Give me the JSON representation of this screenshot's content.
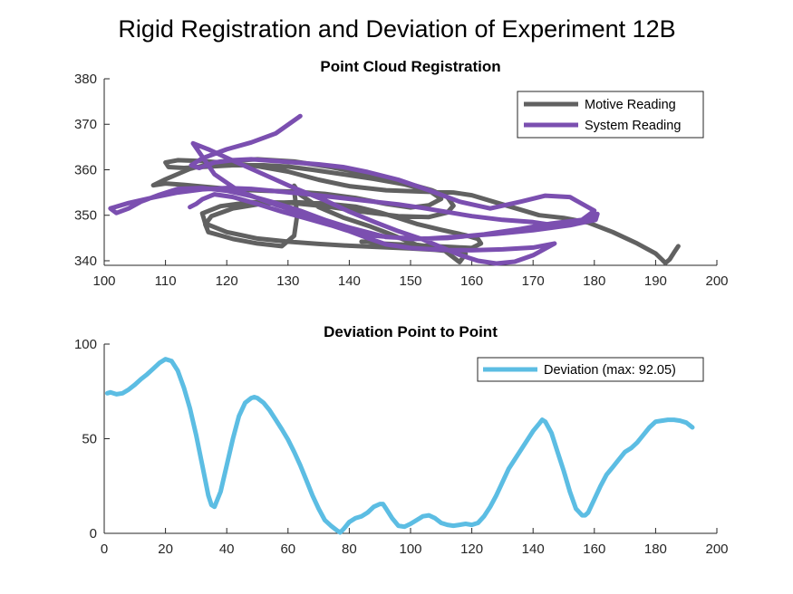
{
  "figure": {
    "title": "Rigid Registration and Deviation of Experiment 12B"
  },
  "chart_data": [
    {
      "type": "line",
      "title": "Point Cloud Registration",
      "xlabel": "",
      "ylabel": "",
      "xlim": [
        100,
        200
      ],
      "ylim": [
        339,
        380
      ],
      "xticks": [
        100,
        110,
        120,
        130,
        140,
        150,
        160,
        170,
        180,
        190,
        200
      ],
      "yticks": [
        340,
        350,
        360,
        370,
        380
      ],
      "grid": false,
      "legend_position": "top-right",
      "series": [
        {
          "name": "Motive Reading",
          "color": "#616161",
          "x": [
            193.7,
            193.0,
            192.3,
            191.6,
            191.1,
            190.0,
            187.0,
            183.0,
            179.0,
            175.0,
            171.0,
            168.0,
            164.0,
            160.0,
            157.0,
            152.0,
            146.0,
            140.0,
            135.0,
            130.0,
            125.0,
            120.0,
            116.0,
            112.0,
            110.0,
            110.5,
            113.0,
            117.0,
            121.0,
            126.0,
            130.0,
            134.0,
            139.0,
            144.0,
            149.0,
            153.0,
            155.0,
            153.0,
            150.0,
            146.0,
            141.0,
            136.0,
            131.0,
            126.0,
            121.0,
            117.0,
            113.0,
            110.0,
            108.0,
            110.0,
            114.0,
            119.0,
            125.0,
            131.0,
            137.0,
            143.0,
            149.0,
            153.5,
            156.0,
            157.0,
            156.0,
            153.0,
            148.0,
            142.0,
            136.0,
            130.0,
            124.0,
            119.0,
            116.0,
            116.5,
            120.0,
            125.0,
            130.0,
            135.0,
            140.0,
            145.0,
            150.0,
            154.0,
            157.0,
            159.0,
            158.0,
            155.0,
            151.0,
            147.0,
            143.5,
            139.0,
            135.0,
            132.0,
            131.0,
            131.0,
            131.5,
            131.0,
            129.0,
            125.0,
            121.0,
            117.0,
            116.5,
            117.5,
            121.0,
            126.0,
            131.0,
            136.0,
            141.0,
            145.0,
            148.0,
            151.0,
            155.0,
            159.0,
            161.0,
            161.5,
            160.0,
            157.0,
            154.0,
            151.0,
            148.0,
            145.0,
            143.0,
            142.0
          ],
          "y": [
            343.2,
            341.8,
            340.3,
            339.5,
            340.2,
            341.6,
            343.8,
            346.3,
            348.4,
            349.4,
            350.0,
            351.2,
            352.8,
            354.4,
            355.0,
            355.2,
            355.5,
            356.4,
            357.8,
            359.6,
            360.8,
            361.5,
            361.9,
            362.1,
            361.6,
            360.6,
            360.4,
            360.7,
            361.0,
            361.0,
            360.7,
            360.0,
            359.0,
            358.0,
            356.8,
            355.4,
            353.6,
            352.2,
            351.7,
            352.5,
            353.8,
            354.7,
            355.2,
            355.4,
            355.7,
            356.2,
            356.7,
            357.0,
            356.6,
            357.9,
            360.2,
            361.8,
            362.3,
            361.8,
            360.6,
            359.0,
            357.2,
            355.5,
            354.0,
            352.1,
            350.6,
            349.6,
            349.8,
            350.8,
            352.0,
            352.8,
            352.9,
            352.0,
            350.4,
            348.2,
            346.3,
            344.9,
            344.2,
            343.7,
            343.3,
            343.0,
            342.7,
            342.4,
            342.0,
            341.5,
            339.7,
            342.8,
            343.5,
            345.7,
            347.5,
            349.5,
            351.8,
            354.5,
            356.5,
            355.5,
            350.0,
            345.5,
            343.2,
            343.8,
            344.8,
            346.3,
            348.0,
            349.8,
            351.5,
            352.6,
            352.9,
            352.6,
            351.9,
            350.6,
            349.4,
            348.1,
            346.8,
            345.6,
            344.8,
            343.8,
            342.8,
            343.0,
            343.2,
            343.4,
            343.6,
            343.8,
            344.2,
            344.2
          ]
        },
        {
          "name": "System Reading",
          "color": "#7b4fb0",
          "x": [
            132.0,
            128.0,
            124.0,
            120.0,
            116.0,
            114.2,
            115.5,
            118.0,
            121.0,
            124.0,
            127.0,
            131.0,
            135.0,
            139.0,
            143.0,
            148.0,
            153.0,
            158.0,
            163.0,
            168.0,
            172.0,
            176.0,
            180.0,
            178.0,
            173.0,
            168.0,
            162.0,
            156.0,
            150.0,
            144.0,
            140.0,
            136.0,
            132.0,
            128.0,
            124.0,
            120.0,
            116.0,
            112.0,
            109.0,
            106.0,
            104.0,
            102.0,
            101.0,
            104.0,
            108.0,
            112.0,
            116.0,
            120.0,
            124.0,
            128.0,
            132.0,
            136.0,
            140.0,
            144.0,
            148.0,
            152.0,
            156.0,
            160.0,
            165.0,
            170.0,
            172.5,
            174.5,
            177.0,
            179.0,
            180.5,
            180.2,
            176.0,
            170.0,
            164.0,
            158.0,
            152.0,
            146.0,
            140.0,
            134.0,
            128.0,
            122.0,
            118.0,
            114.5,
            117.0,
            121.0,
            126.0,
            131.0,
            136.0,
            140.0,
            144.0,
            148.0,
            152.0,
            155.0,
            158.0,
            161.0,
            164.0,
            167.0,
            170.0,
            173.5,
            170.0,
            165.0,
            160.0,
            155.0,
            150.0,
            146.0,
            143.0,
            140.0,
            137.0,
            133.0,
            129.0,
            125.0,
            121.0,
            118.0,
            116.0,
            115.0,
            114.0
          ],
          "y": [
            371.8,
            368.0,
            366.0,
            364.5,
            362.5,
            361.0,
            360.4,
            361.6,
            362.1,
            362.3,
            362.0,
            361.6,
            361.2,
            360.6,
            359.5,
            357.8,
            355.5,
            353.0,
            351.5,
            353.0,
            354.3,
            354.0,
            351.0,
            349.0,
            348.2,
            347.0,
            345.8,
            345.0,
            344.8,
            345.5,
            347.0,
            349.0,
            351.0,
            352.7,
            354.2,
            355.4,
            356.0,
            355.8,
            354.5,
            353.0,
            351.5,
            350.5,
            351.5,
            352.7,
            353.9,
            355.0,
            355.7,
            356.0,
            355.8,
            355.3,
            354.8,
            354.2,
            353.6,
            353.0,
            352.4,
            351.6,
            350.7,
            349.8,
            349.0,
            348.5,
            348.0,
            347.7,
            348.3,
            349.3,
            350.3,
            349.0,
            347.8,
            346.7,
            345.9,
            345.3,
            344.8,
            345.2,
            347.3,
            349.8,
            352.3,
            355.3,
            359.0,
            365.8,
            364.5,
            362.0,
            359.0,
            356.0,
            353.3,
            350.8,
            348.6,
            346.5,
            344.7,
            343.0,
            341.3,
            340.0,
            339.4,
            339.8,
            341.2,
            343.8,
            342.9,
            342.5,
            342.3,
            342.4,
            342.8,
            343.6,
            345.0,
            346.5,
            347.8,
            349.3,
            350.8,
            352.5,
            354.0,
            354.6,
            353.5,
            352.5,
            351.8
          ]
        }
      ]
    },
    {
      "type": "line",
      "title": "Deviation Point to Point",
      "xlabel": "",
      "ylabel": "",
      "xlim": [
        0,
        200
      ],
      "ylim": [
        0,
        100
      ],
      "xticks": [
        0,
        20,
        40,
        60,
        80,
        100,
        120,
        140,
        160,
        180,
        200
      ],
      "yticks": [
        0,
        50,
        100
      ],
      "grid": false,
      "legend_position": "top-right",
      "series": [
        {
          "name": "Deviation (max: 92.05)",
          "color": "#5cbde3",
          "x": [
            1,
            2,
            4,
            6,
            8,
            10,
            12,
            14,
            16,
            18,
            20,
            22,
            24,
            26,
            28,
            30,
            32,
            34,
            35,
            36,
            38,
            40,
            42,
            44,
            46,
            48,
            49,
            50,
            52,
            54,
            56,
            58,
            60,
            62,
            64,
            66,
            68,
            70,
            72,
            74,
            76,
            77,
            78,
            80,
            82,
            84,
            86,
            88,
            90,
            91,
            92,
            94,
            96,
            98,
            100,
            102,
            104,
            106,
            108,
            110,
            112,
            114,
            116,
            118,
            120,
            122,
            124,
            126,
            128,
            130,
            132,
            134,
            136,
            138,
            140,
            142,
            143,
            144,
            146,
            148,
            150,
            152,
            154,
            156,
            157,
            158,
            160,
            162,
            164,
            166,
            168,
            170,
            172,
            174,
            176,
            178,
            180,
            182,
            184,
            186,
            188,
            190,
            192
          ],
          "y": [
            74,
            74.5,
            73.5,
            74,
            76,
            78.5,
            81.5,
            84,
            87,
            90,
            92.05,
            91,
            86,
            77,
            66,
            52,
            36,
            20,
            15,
            14,
            22,
            36,
            50,
            62,
            69,
            71.5,
            72,
            71.5,
            69,
            65,
            60,
            55,
            49.5,
            43,
            36,
            28,
            20,
            13,
            7,
            4,
            1.5,
            0.5,
            2,
            6,
            8,
            9,
            11,
            14,
            15.5,
            15.5,
            13,
            8,
            4,
            3.5,
            5,
            7,
            9,
            9.5,
            8,
            5.5,
            4.5,
            4,
            4.5,
            5,
            4.5,
            5.5,
            9,
            14,
            20,
            27,
            34,
            39,
            44,
            49,
            54,
            58,
            60,
            59,
            53,
            43,
            33,
            22,
            13,
            9.5,
            9.5,
            11,
            18,
            25,
            31,
            35,
            39,
            43,
            45,
            48,
            52,
            56,
            59,
            59.5,
            60,
            60,
            59.5,
            58.5,
            56
          ]
        }
      ]
    }
  ]
}
